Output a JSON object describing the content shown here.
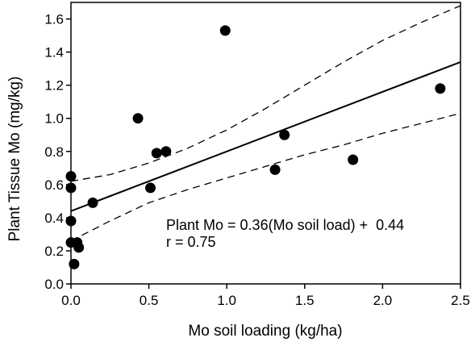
{
  "chart_data": {
    "type": "scatter",
    "title": "",
    "xlabel": "Mo soil loading (kg/ha)",
    "ylabel": "Plant Tissue Mo (mg/kg)",
    "xlim": [
      0.0,
      2.5
    ],
    "ylim": [
      0.0,
      1.7
    ],
    "x_ticks": [
      0.0,
      0.5,
      1.0,
      1.5,
      2.0,
      2.5
    ],
    "y_ticks": [
      0.0,
      0.2,
      0.4,
      0.6,
      0.8,
      1.0,
      1.2,
      1.4,
      1.6
    ],
    "x_tick_labels": [
      "0.0",
      "0.5",
      "1.0",
      "1.5",
      "2.0",
      "2.5"
    ],
    "y_tick_labels": [
      "0.0",
      "0.2",
      "0.4",
      "0.6",
      "0.8",
      "1.0",
      "1.2",
      "1.4",
      "1.6"
    ],
    "grid": false,
    "series": [
      {
        "marker": "filled-circle",
        "color": "#000000",
        "points": [
          {
            "x": 0.0,
            "y": 0.65
          },
          {
            "x": 0.0,
            "y": 0.58
          },
          {
            "x": 0.0,
            "y": 0.38
          },
          {
            "x": 0.0,
            "y": 0.25
          },
          {
            "x": 0.02,
            "y": 0.12
          },
          {
            "x": 0.04,
            "y": 0.25
          },
          {
            "x": 0.05,
            "y": 0.22
          },
          {
            "x": 0.14,
            "y": 0.49
          },
          {
            "x": 0.43,
            "y": 1.0
          },
          {
            "x": 0.51,
            "y": 0.58
          },
          {
            "x": 0.55,
            "y": 0.79
          },
          {
            "x": 0.61,
            "y": 0.8
          },
          {
            "x": 0.99,
            "y": 1.53
          },
          {
            "x": 1.31,
            "y": 0.69
          },
          {
            "x": 1.37,
            "y": 0.9
          },
          {
            "x": 1.81,
            "y": 0.75
          },
          {
            "x": 2.37,
            "y": 1.18
          }
        ]
      }
    ],
    "regression": {
      "slope": 0.36,
      "intercept": 0.44,
      "style": "solid",
      "x_range": [
        0.0,
        2.5
      ]
    },
    "confidence_bands": {
      "style": "dashed",
      "upper": [
        {
          "x": 0.0,
          "y": 0.62
        },
        {
          "x": 0.25,
          "y": 0.66
        },
        {
          "x": 0.5,
          "y": 0.73
        },
        {
          "x": 0.75,
          "y": 0.82
        },
        {
          "x": 1.0,
          "y": 0.93
        },
        {
          "x": 1.25,
          "y": 1.06
        },
        {
          "x": 1.5,
          "y": 1.2
        },
        {
          "x": 1.75,
          "y": 1.34
        },
        {
          "x": 2.0,
          "y": 1.47
        },
        {
          "x": 2.25,
          "y": 1.58
        },
        {
          "x": 2.5,
          "y": 1.68
        }
      ],
      "lower": [
        {
          "x": 0.0,
          "y": 0.26
        },
        {
          "x": 0.25,
          "y": 0.38
        },
        {
          "x": 0.5,
          "y": 0.49
        },
        {
          "x": 0.75,
          "y": 0.57
        },
        {
          "x": 1.0,
          "y": 0.64
        },
        {
          "x": 1.25,
          "y": 0.71
        },
        {
          "x": 1.5,
          "y": 0.78
        },
        {
          "x": 1.75,
          "y": 0.84
        },
        {
          "x": 2.0,
          "y": 0.91
        },
        {
          "x": 2.25,
          "y": 0.97
        },
        {
          "x": 2.5,
          "y": 1.03
        }
      ]
    },
    "annotations": [
      "Plant Mo = 0.36(Mo soil load) +  0.44",
      "r = 0.75"
    ]
  }
}
